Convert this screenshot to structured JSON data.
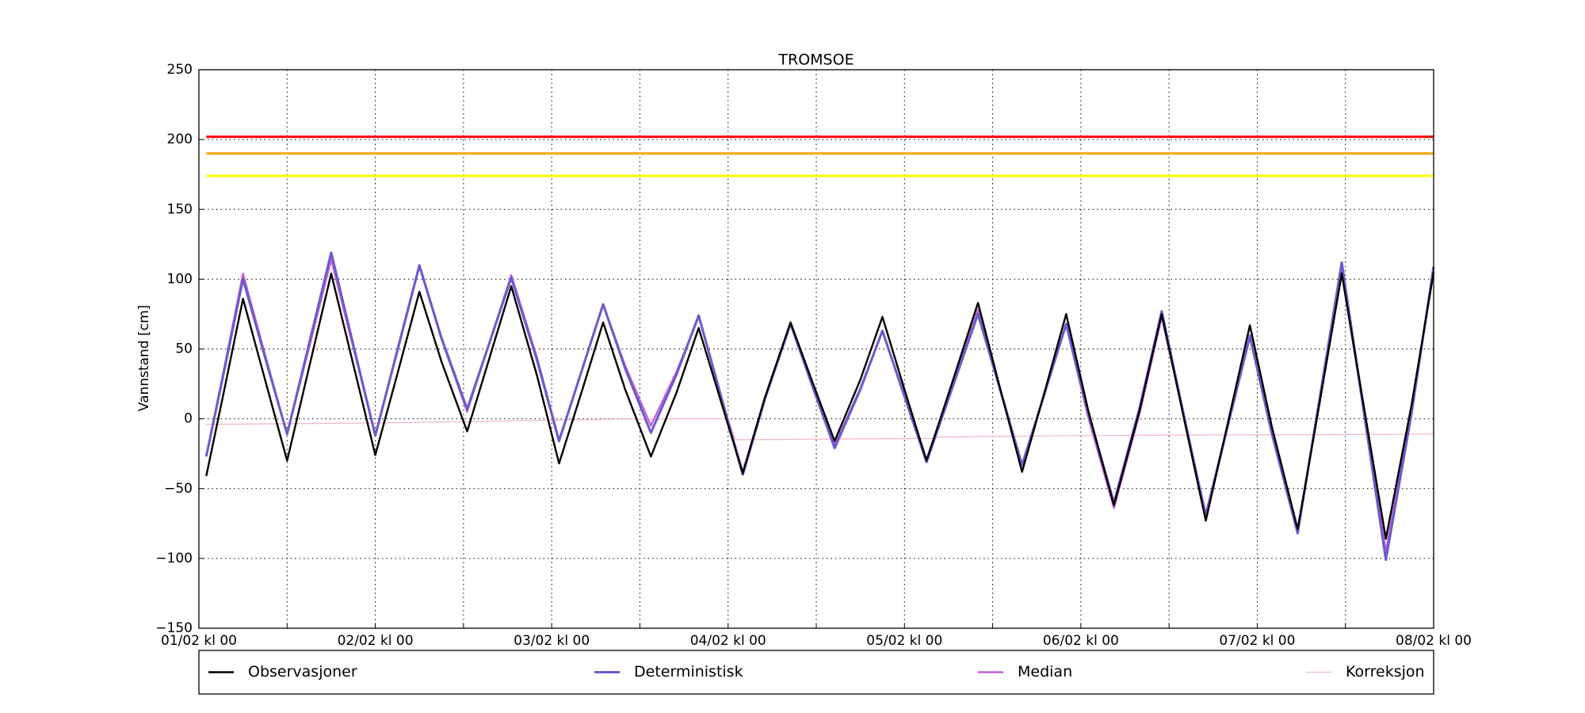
{
  "chart_data": {
    "type": "line",
    "title": "TROMSOE",
    "ylabel": "Vannstand [cm]",
    "x": [
      1,
      3.5,
      6,
      9,
      12,
      15,
      18,
      21,
      24,
      27,
      30,
      33,
      36.5,
      39.5,
      42.5,
      46,
      49,
      52,
      55,
      58,
      61.5,
      65,
      68,
      71,
      74,
      77,
      80.5,
      83.5,
      86.5,
      90,
      93,
      96,
      99,
      102.5,
      106,
      109,
      112,
      115,
      118,
      121,
      124.5,
      128,
      131,
      134,
      137,
      140,
      143,
      146,
      149.5,
      152.5,
      155.5,
      158.5,
      161.5,
      165,
      168
    ],
    "series": [
      {
        "name": "Observasjoner",
        "color": "#000000",
        "width": 2.4,
        "values": [
          -41,
          22,
          86,
          28,
          -30,
          37,
          104,
          39,
          -26,
          32,
          91,
          41,
          -9,
          43,
          95,
          31,
          -32,
          18,
          69,
          21,
          -27,
          19,
          65,
          13,
          -39,
          15,
          69,
          26,
          -16,
          28,
          73,
          21,
          -30,
          26,
          83,
          22,
          -38,
          18,
          75,
          6,
          -62,
          6,
          75,
          1,
          -73,
          -3,
          67,
          -6,
          -79,
          12,
          104,
          9,
          -86,
          10,
          105
        ]
      },
      {
        "name": "Deterministisk",
        "color": "#6a5acd",
        "width": 3,
        "values": [
          -27,
          36,
          100,
          44,
          -11,
          54,
          119,
          53,
          -12,
          49,
          110,
          58,
          7,
          54,
          101,
          42,
          -16,
          33,
          82,
          36,
          -10,
          32,
          74,
          17,
          -40,
          14,
          68,
          23,
          -21,
          21,
          63,
          16,
          -31,
          22,
          75,
          21,
          -33,
          17,
          68,
          4,
          -60,
          8,
          77,
          3,
          -70,
          -5,
          59,
          -11,
          -82,
          15,
          112,
          5,
          -101,
          4,
          109
        ]
      },
      {
        "name": "Median",
        "color": "#c760d8",
        "width": 2.4,
        "values": [
          -27,
          38,
          104,
          46,
          -11,
          51,
          114,
          51,
          -12,
          48,
          109,
          57,
          5,
          54,
          103,
          44,
          -15,
          33,
          82,
          38,
          -5,
          34,
          73,
          17,
          -38,
          15,
          69,
          25,
          -19,
          22,
          63,
          17,
          -29,
          24,
          78,
          22,
          -33,
          17,
          67,
          1,
          -64,
          4,
          73,
          2,
          -68,
          -4,
          60,
          -10,
          -80,
          12,
          105,
          5,
          -95,
          6,
          108
        ]
      },
      {
        "name": "Korreksjon",
        "color": "#f4b8c8",
        "width": 1.3,
        "x": [
          1,
          24,
          48,
          60,
          72,
          73,
          100,
          101,
          120,
          168
        ],
        "values": [
          -4,
          -3,
          -1,
          0,
          0,
          -15,
          -14,
          -13,
          -12,
          -11
        ]
      }
    ],
    "hlines": [
      {
        "value": 202,
        "color": "#ff0000"
      },
      {
        "value": 190,
        "color": "#ffa500"
      },
      {
        "value": 174,
        "color": "#ffff00"
      }
    ],
    "xlim": [
      0,
      168
    ],
    "ylim": [
      -150,
      250
    ],
    "xticks": [
      {
        "value": 0,
        "label": "01/02 kl 00"
      },
      {
        "value": 12,
        "label": null
      },
      {
        "value": 24,
        "label": "02/02 kl 00"
      },
      {
        "value": 36,
        "label": null
      },
      {
        "value": 48,
        "label": "03/02 kl 00"
      },
      {
        "value": 60,
        "label": null
      },
      {
        "value": 72,
        "label": "04/02 kl 00"
      },
      {
        "value": 84,
        "label": null
      },
      {
        "value": 96,
        "label": "05/02 kl 00"
      },
      {
        "value": 108,
        "label": null
      },
      {
        "value": 120,
        "label": "06/02 kl 00"
      },
      {
        "value": 132,
        "label": null
      },
      {
        "value": 144,
        "label": "07/02 kl 00"
      },
      {
        "value": 156,
        "label": null
      },
      {
        "value": 168,
        "label": "08/02 kl 00"
      }
    ],
    "yticks": [
      {
        "value": -150,
        "label": "−150"
      },
      {
        "value": -100,
        "label": "−100"
      },
      {
        "value": -50,
        "label": "−50"
      },
      0,
      50,
      100,
      150,
      200,
      250
    ],
    "grid": true
  }
}
